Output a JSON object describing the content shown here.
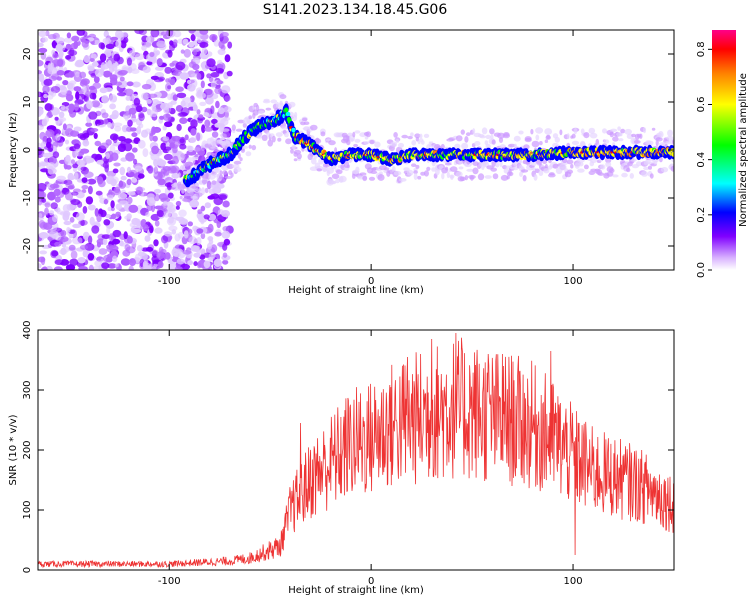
{
  "title": "S141.2023.134.18.45.G06",
  "chart_data": [
    {
      "type": "heatmap",
      "xlabel": "Height of straight line (km)",
      "ylabel": "Frequency (Hz)",
      "xlim": [
        -165,
        150
      ],
      "ylim": [
        -25,
        25
      ],
      "x_ticks": [
        -100,
        0,
        100
      ],
      "y_ticks": [
        -20,
        -10,
        0,
        10,
        20
      ],
      "colorbar": {
        "label": "Normalized spectral amplitude",
        "ticks": [
          0.0,
          0.2,
          0.4,
          0.6,
          0.8
        ],
        "range": [
          0,
          0.87
        ]
      },
      "colors": [
        "#ffffff",
        "#cc99ff",
        "#8000ff",
        "#0000ff",
        "#00ffff",
        "#00ff00",
        "#ffff00",
        "#ff8000",
        "#ff0000",
        "#ff0088"
      ],
      "noise_region_x": [
        -165,
        -80
      ],
      "ridge": [
        {
          "x": -90,
          "y": -6
        },
        {
          "x": -80,
          "y": -3
        },
        {
          "x": -70,
          "y": -1
        },
        {
          "x": -62,
          "y": 3
        },
        {
          "x": -55,
          "y": 5
        },
        {
          "x": -48,
          "y": 6
        },
        {
          "x": -42,
          "y": 8
        },
        {
          "x": -38,
          "y": 3
        },
        {
          "x": -30,
          "y": 1
        },
        {
          "x": -20,
          "y": -2
        },
        {
          "x": -10,
          "y": -1
        },
        {
          "x": 0,
          "y": -1
        },
        {
          "x": 10,
          "y": -2
        },
        {
          "x": 20,
          "y": -1
        },
        {
          "x": 40,
          "y": -1
        },
        {
          "x": 60,
          "y": -1
        },
        {
          "x": 80,
          "y": -1
        },
        {
          "x": 100,
          "y": -0.5
        },
        {
          "x": 150,
          "y": -0.5
        }
      ]
    },
    {
      "type": "line",
      "xlabel": "Height of straight line (km)",
      "ylabel": "SNR (10 * v/v)",
      "xlim": [
        -165,
        150
      ],
      "ylim": [
        0,
        400
      ],
      "x_ticks": [
        -100,
        0,
        100
      ],
      "y_ticks": [
        0,
        100,
        200,
        300,
        400
      ],
      "color": "#ee3333",
      "envelope": [
        {
          "x": -165,
          "y": 10
        },
        {
          "x": -100,
          "y": 10
        },
        {
          "x": -70,
          "y": 15
        },
        {
          "x": -60,
          "y": 20
        },
        {
          "x": -45,
          "y": 40
        },
        {
          "x": -40,
          "y": 100
        },
        {
          "x": -30,
          "y": 150
        },
        {
          "x": -20,
          "y": 180
        },
        {
          "x": -10,
          "y": 210
        },
        {
          "x": 0,
          "y": 220
        },
        {
          "x": 10,
          "y": 240
        },
        {
          "x": 20,
          "y": 250
        },
        {
          "x": 30,
          "y": 260
        },
        {
          "x": 40,
          "y": 270
        },
        {
          "x": 50,
          "y": 265
        },
        {
          "x": 60,
          "y": 255
        },
        {
          "x": 70,
          "y": 250
        },
        {
          "x": 80,
          "y": 240
        },
        {
          "x": 90,
          "y": 220
        },
        {
          "x": 100,
          "y": 190
        },
        {
          "x": 110,
          "y": 165
        },
        {
          "x": 120,
          "y": 155
        },
        {
          "x": 130,
          "y": 145
        },
        {
          "x": 140,
          "y": 130
        },
        {
          "x": 150,
          "y": 110
        }
      ],
      "peaks": [
        {
          "x": 42,
          "y": 395
        },
        {
          "x": 30,
          "y": 385
        },
        {
          "x": 18,
          "y": 355
        },
        {
          "x": 58,
          "y": 360
        },
        {
          "x": 65,
          "y": 360
        },
        {
          "x": 89,
          "y": 365
        },
        {
          "x": -35,
          "y": 245
        },
        {
          "x": 101,
          "y": 25
        }
      ]
    }
  ]
}
